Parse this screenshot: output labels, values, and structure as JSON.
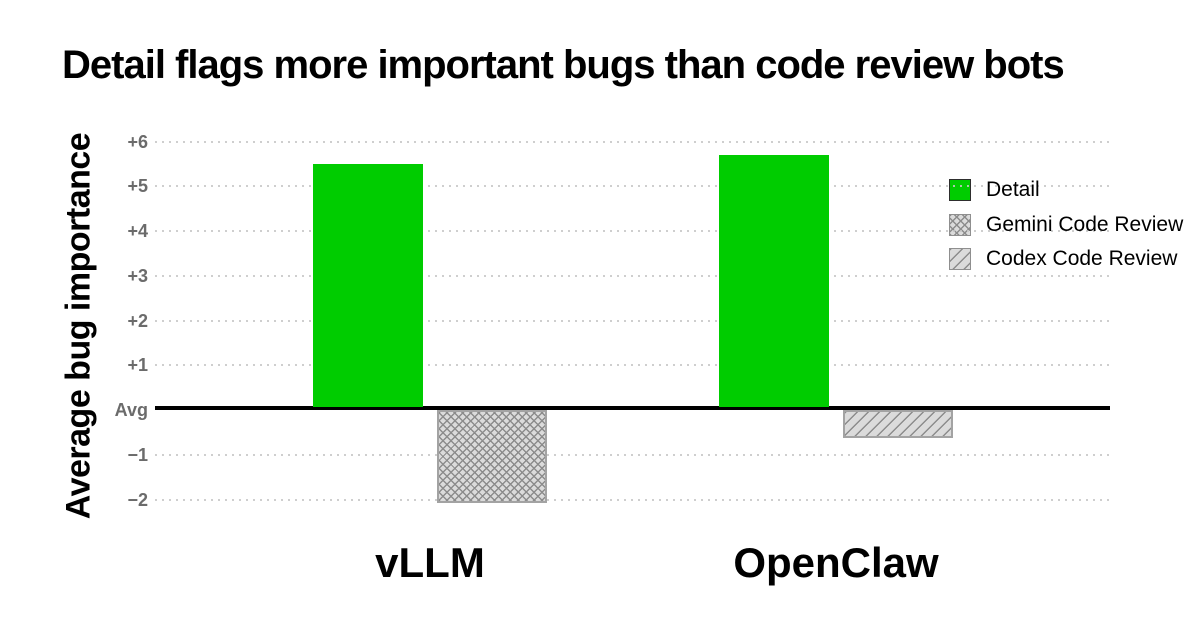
{
  "title": "Detail flags more important bugs than code review bots",
  "chart_data": {
    "type": "bar",
    "title": "Detail flags more important bugs than code review bots",
    "categories": [
      "vLLM",
      "OpenClaw"
    ],
    "series": [
      {
        "name": "Detail",
        "pattern": "solid",
        "values": [
          5.5,
          5.7
        ]
      },
      {
        "name": "Gemini Code Review",
        "pattern": "crosshatch",
        "values": [
          -2.1,
          null
        ]
      },
      {
        "name": "Codex Code Review",
        "pattern": "diagonal-stripes",
        "values": [
          null,
          -0.65
        ]
      }
    ],
    "xlabel": "",
    "ylabel": "Average bug importance",
    "yticks": [
      {
        "v": 6,
        "label": "+6"
      },
      {
        "v": 5,
        "label": "+5"
      },
      {
        "v": 4,
        "label": "+4"
      },
      {
        "v": 3,
        "label": "+3"
      },
      {
        "v": 2,
        "label": "+2"
      },
      {
        "v": 1,
        "label": "+1"
      },
      {
        "v": 0,
        "label": "Avg"
      },
      {
        "v": -1,
        "label": "−1"
      },
      {
        "v": -2,
        "label": "−2"
      }
    ],
    "ylim": [
      -2.6,
      6.3
    ],
    "grid": "dotted-horizontal",
    "legend_position": "upper-right",
    "baseline": {
      "value": 0,
      "label": "Avg",
      "style": "solid-black"
    }
  },
  "colors": {
    "background": "#ffffff",
    "title_text": "#000000",
    "detail_green": "#00cc00",
    "hatch_fill": "#dbdbdb",
    "hatch_stroke": "#8c8c8c",
    "hatch_border": "#a3a3a3",
    "gridline": "#c7c7c7",
    "tick_text": "#6b6b6b",
    "baseline": "#000000"
  }
}
